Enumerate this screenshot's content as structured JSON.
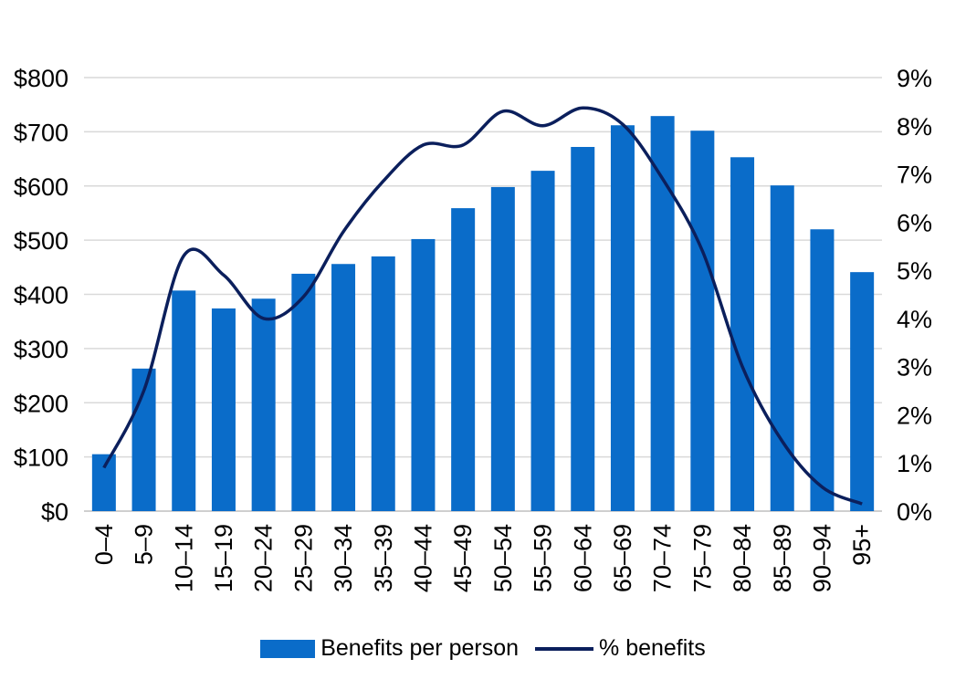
{
  "chart_data": {
    "type": "bar+line",
    "categories": [
      "0–4",
      "5–9",
      "10–14",
      "15–19",
      "20–24",
      "25–29",
      "30–34",
      "35–39",
      "40–44",
      "45–49",
      "50–54",
      "55–59",
      "60–64",
      "65–69",
      "70–74",
      "75–79",
      "80–84",
      "85–89",
      "90–94",
      "95+"
    ],
    "series": [
      {
        "name": "Benefits per person",
        "type": "bar",
        "axis": "left",
        "color": "#0a6cc9",
        "values": [
          105,
          263,
          407,
          374,
          392,
          438,
          456,
          470,
          502,
          559,
          598,
          628,
          672,
          712,
          729,
          702,
          653,
          601,
          520,
          441
        ]
      },
      {
        "name": "% benefits",
        "type": "line",
        "axis": "right",
        "color": "#0b1f5c",
        "values": [
          0.9,
          2.5,
          5.3,
          4.9,
          4.0,
          4.45,
          5.8,
          6.85,
          7.6,
          7.6,
          8.3,
          8.0,
          8.37,
          8.03,
          6.9,
          5.4,
          3.0,
          1.45,
          0.5,
          0.15
        ]
      }
    ],
    "y_left": {
      "range": [
        0,
        800
      ],
      "ticks": [
        "$0",
        "$100",
        "$200",
        "$300",
        "$400",
        "$500",
        "$600",
        "$700",
        "$800"
      ]
    },
    "y_right": {
      "range": [
        0,
        9
      ],
      "ticks": [
        "0%",
        "1%",
        "2%",
        "3%",
        "4%",
        "5%",
        "6%",
        "7%",
        "8%",
        "9%"
      ]
    },
    "grid": true,
    "legend": "bottom"
  }
}
